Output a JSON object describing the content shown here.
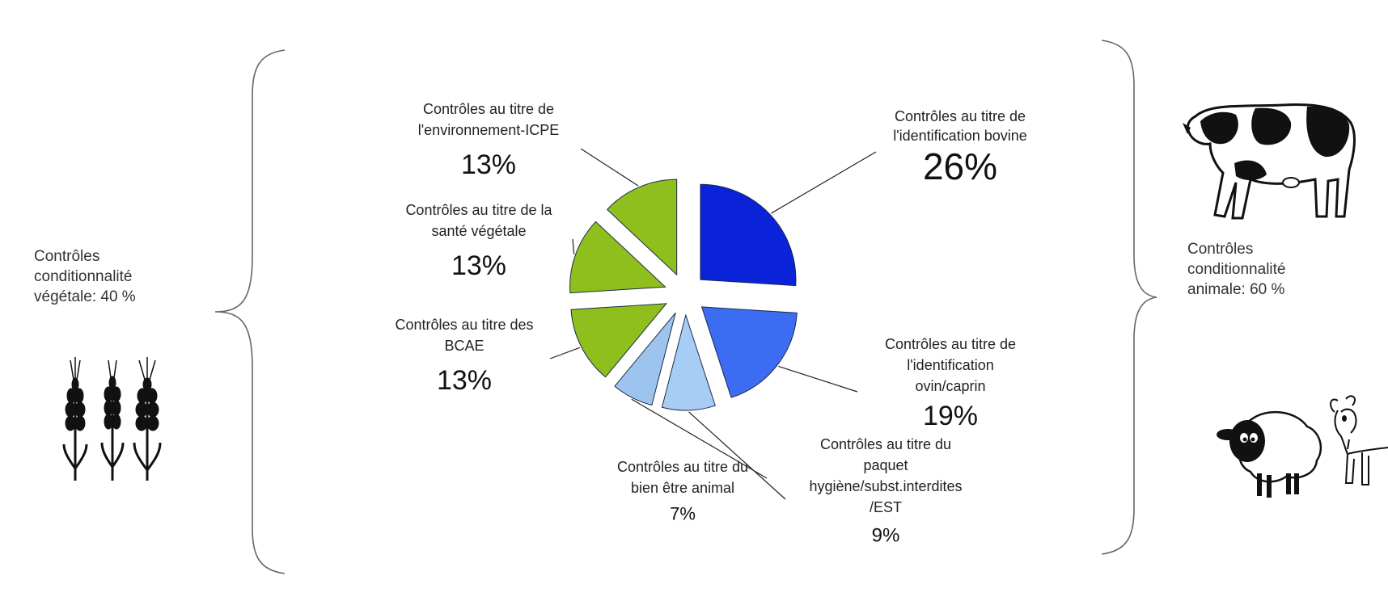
{
  "left_group": {
    "lines": [
      "Contrôles",
      "conditionnalité",
      "végétale: 40 %"
    ],
    "icon": "wheat-icon"
  },
  "right_group": {
    "lines": [
      "Contrôles",
      "conditionnalité",
      "animale: 60 %"
    ],
    "icons": [
      "cow-icon",
      "sheep-icon",
      "goat-icon"
    ]
  },
  "chart_data": {
    "type": "pie",
    "title": "",
    "slices": [
      {
        "label_lines": [
          "Contrôles au titre de",
          "l'identification bovine"
        ],
        "value": 26,
        "value_text": "26%",
        "color": "#0a22d8"
      },
      {
        "label_lines": [
          "Contrôles au titre de",
          "l'identification",
          "ovin/caprin"
        ],
        "value": 19,
        "value_text": "19%",
        "color": "#3b6cf2"
      },
      {
        "label_lines": [
          "Contrôles au titre du",
          "paquet",
          "hygiène/subst.interdites",
          "/EST"
        ],
        "value": 9,
        "value_text": "9%",
        "color": "#a8cdf5"
      },
      {
        "label_lines": [
          "Contrôles au titre du",
          "bien être animal"
        ],
        "value": 7,
        "value_text": "7%",
        "color": "#9cc4ef"
      },
      {
        "label_lines": [
          "Contrôles au titre des",
          "BCAE"
        ],
        "value": 13,
        "value_text": "13%",
        "color": "#8fbf1c"
      },
      {
        "label_lines": [
          "Contrôles au titre de la",
          "santé végétale"
        ],
        "value": 13,
        "value_text": "13%",
        "color": "#8fbf1c"
      },
      {
        "label_lines": [
          "Contrôles au titre de",
          "l'environnement-ICPE"
        ],
        "value": 13,
        "value_text": "13%",
        "color": "#8fbf1c"
      }
    ]
  }
}
